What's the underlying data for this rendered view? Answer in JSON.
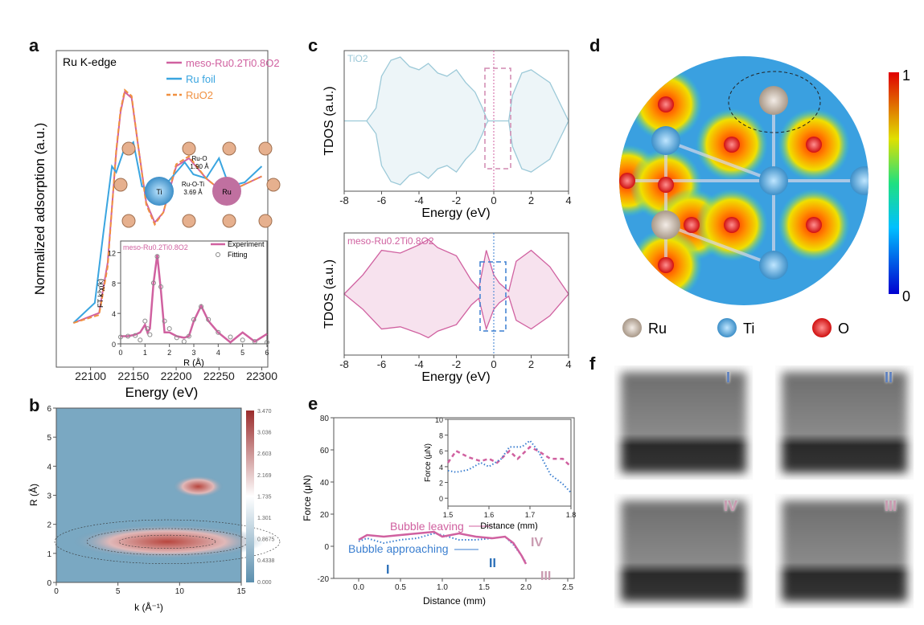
{
  "panels": {
    "a": "a",
    "b": "b",
    "c": "c",
    "d": "d",
    "e": "e",
    "f": "f"
  },
  "chart_data": [
    {
      "panel": "a",
      "type": "line",
      "annotation": "Ru K-edge",
      "xlabel": "Energy (eV)",
      "ylabel": "Normalized adsorption (a.u.)",
      "xlim": [
        22080,
        22300
      ],
      "xticks": [
        22100,
        22150,
        22200,
        22250,
        22300
      ],
      "series": [
        {
          "name": "meso-Ru0.2Ti0.8O2",
          "color": "#d061a0",
          "x": [
            22080,
            22110,
            22120,
            22130,
            22135,
            22140,
            22148,
            22155,
            22165,
            22175,
            22185,
            22200,
            22215,
            22235,
            22255,
            22275,
            22300
          ],
          "y": [
            0.0,
            0.05,
            0.3,
            0.85,
            1.05,
            1.15,
            1.12,
            0.9,
            0.6,
            0.5,
            0.55,
            0.78,
            0.82,
            0.72,
            0.65,
            0.68,
            0.73
          ]
        },
        {
          "name": "Ru foil",
          "color": "#3aa5e0",
          "x": [
            22080,
            22105,
            22115,
            22125,
            22130,
            22138,
            22150,
            22160,
            22172,
            22190,
            22210,
            22220,
            22235,
            22250,
            22262,
            22280,
            22300
          ],
          "y": [
            0.0,
            0.1,
            0.45,
            0.78,
            0.75,
            0.85,
            0.9,
            0.68,
            0.66,
            0.7,
            0.8,
            0.74,
            0.72,
            0.82,
            0.68,
            0.7,
            0.78
          ]
        },
        {
          "name": "RuO2",
          "color": "#f09040",
          "dashed": true,
          "x": [
            22080,
            22110,
            22120,
            22130,
            22135,
            22140,
            22148,
            22155,
            22165,
            22175,
            22185,
            22200,
            22215,
            22235,
            22255,
            22275,
            22300
          ],
          "y": [
            0.0,
            0.04,
            0.28,
            0.86,
            1.06,
            1.16,
            1.13,
            0.9,
            0.59,
            0.49,
            0.55,
            0.79,
            0.83,
            0.72,
            0.65,
            0.68,
            0.73
          ]
        }
      ],
      "structure": {
        "center1": "Ti",
        "center2": "Ru",
        "bond1": "Ru-O",
        "bond1_len": "1.90 Å",
        "bond2": "Ru-O-Ti",
        "bond2_len": "3.69 Å"
      },
      "inset": {
        "type": "line",
        "title": "meso-Ru0.2Ti0.8O2",
        "xlabel": "R (Å)",
        "ylabel": "FT k³χ(k)",
        "xlim": [
          0,
          6
        ],
        "ylim": [
          0,
          13
        ],
        "xticks": [
          0,
          1,
          2,
          3,
          4,
          5,
          6
        ],
        "yticks": [
          0,
          4,
          8,
          12
        ],
        "series": [
          {
            "name": "Experiment",
            "color": "#d061a0",
            "x": [
              0,
              0.3,
              0.6,
              0.8,
              1.0,
              1.1,
              1.2,
              1.35,
              1.5,
              1.65,
              1.8,
              2.0,
              2.3,
              2.6,
              2.8,
              3.0,
              3.3,
              3.6,
              4.0,
              4.5,
              5.0,
              5.5,
              6.0
            ],
            "y": [
              1,
              1,
              1.2,
              1.5,
              2.5,
              1.5,
              2,
              8,
              11.7,
              7,
              1.5,
              1.5,
              1,
              0.8,
              1,
              3,
              5,
              3,
              1.5,
              0.2,
              1.5,
              0.3,
              1.3
            ]
          },
          {
            "name": "Fitting",
            "color": "#888888",
            "x": [
              0,
              0.3,
              0.6,
              0.8,
              1.0,
              1.1,
              1.2,
              1.35,
              1.5,
              1.65,
              1.8,
              2.0,
              2.3,
              2.6,
              2.8,
              3.0,
              3.3,
              3.6,
              4.0,
              4.5,
              5.0,
              5.5,
              6.0
            ],
            "y": [
              0.9,
              1,
              1.1,
              0.5,
              3,
              2,
              1.2,
              8,
              11.5,
              7.5,
              3,
              2,
              0.8,
              0.3,
              1,
              3.2,
              4.9,
              3.2,
              1.5,
              0.9,
              0.5,
              0.3,
              0.2
            ]
          }
        ]
      }
    },
    {
      "panel": "b",
      "type": "heatmap",
      "xlabel": "k (Å⁻¹)",
      "ylabel": "R (Å)",
      "xlim": [
        0,
        15
      ],
      "ylim": [
        0,
        6
      ],
      "xticks": [
        0,
        5,
        10,
        15
      ],
      "yticks": [
        0,
        1,
        2,
        3,
        4,
        5,
        6
      ],
      "colorbar_ticks": [
        "3.470",
        "3.036",
        "2.603",
        "2.169",
        "1.735",
        "1.301",
        "0.8675",
        "0.4338",
        "0.000"
      ],
      "colors": {
        "low": "#5b8fae",
        "mid": "#ffffff",
        "high": "#9b2c2c"
      },
      "peaks": [
        {
          "k": 9,
          "R": 1.4,
          "value": 3.47
        },
        {
          "k": 11.5,
          "R": 3.3,
          "value": 2.3
        }
      ]
    },
    {
      "panel": "c-top",
      "type": "area",
      "annotation": "TiO2",
      "xlabel": "Energy (eV)",
      "ylabel": "TDOS (a.u.)",
      "xlim": [
        -8,
        4
      ],
      "xticks": [
        -8,
        -6,
        -4,
        -2,
        0,
        2,
        4
      ],
      "color": "#9cc9d8",
      "x": [
        -8,
        -6.8,
        -6.3,
        -6,
        -5.5,
        -5,
        -4.5,
        -4,
        -3.5,
        -3,
        -2.5,
        -2,
        -1.5,
        -1,
        -0.6,
        -0.4,
        -0.3,
        0.8,
        1,
        1.5,
        2,
        2.5,
        3,
        3.5,
        4
      ],
      "y": [
        0,
        0,
        0.2,
        0.7,
        0.95,
        1.0,
        0.85,
        0.8,
        0.9,
        0.75,
        0.7,
        0.8,
        0.6,
        0.45,
        0.2,
        0.05,
        0,
        0,
        0.4,
        0.75,
        0.8,
        0.7,
        0.6,
        0.3,
        0
      ]
    },
    {
      "panel": "c-bottom",
      "type": "area",
      "annotation": "meso-Ru0.2Ti0.8O2",
      "xlabel": "Energy (eV)",
      "ylabel": "TDOS (a.u.)",
      "xlim": [
        -8,
        4
      ],
      "xticks": [
        -8,
        -6,
        -4,
        -2,
        0,
        2,
        4
      ],
      "color": "#d061a0",
      "x": [
        -8,
        -7,
        -6,
        -5,
        -4,
        -3.5,
        -3,
        -2,
        -1.2,
        -0.8,
        -0.4,
        0,
        0.3,
        0.8,
        1.2,
        2,
        3,
        4
      ],
      "y": [
        0,
        0.35,
        0.8,
        0.75,
        0.9,
        1.0,
        0.85,
        0.7,
        0.25,
        0.1,
        0.8,
        0.35,
        0.2,
        0.05,
        0.6,
        0.8,
        0.5,
        0
      ]
    },
    {
      "panel": "d",
      "type": "heatmap",
      "colorbar_ticks": [
        "1",
        "0"
      ],
      "legend": [
        "Ru",
        "Ti",
        "O"
      ],
      "legend_colors": [
        "#c8b8aa",
        "#4aa3d8",
        "#e02020"
      ]
    },
    {
      "panel": "e",
      "type": "line",
      "xlabel": "Distance (mm)",
      "ylabel": "Force (μN)",
      "xlim": [
        -0.2,
        2.5
      ],
      "ylim": [
        -20,
        80
      ],
      "xticks": [
        "0.0",
        "0.5",
        "1.0",
        "1.5",
        "2.0",
        "2.5"
      ],
      "yticks": [
        "80",
        "60",
        "40",
        "20",
        "0",
        "-20"
      ],
      "annotations": [
        "Bubble leaving",
        "Bubble approaching",
        "I",
        "II",
        "III",
        "IV"
      ],
      "series": [
        {
          "name": "Bubble leaving",
          "color": "#d061a0",
          "x": [
            0,
            0.1,
            0.3,
            0.5,
            0.7,
            0.9,
            1.0,
            1.2,
            1.4,
            1.6,
            1.75,
            1.85,
            1.95,
            2.0
          ],
          "y": [
            4,
            7,
            6,
            7,
            8,
            9,
            6,
            8,
            6,
            5,
            6,
            2,
            -6,
            -11
          ]
        },
        {
          "name": "Bubble approaching",
          "color": "#3b7fd0",
          "x": [
            0,
            0.1,
            0.3,
            0.5,
            0.7,
            0.9,
            1.0,
            1.2,
            1.4,
            1.6,
            1.75,
            1.85,
            1.95,
            2.0
          ],
          "y": [
            3,
            5,
            2,
            4,
            5,
            8,
            7,
            4,
            4,
            5,
            6,
            1,
            -6,
            -10
          ]
        }
      ],
      "inset": {
        "xlabel": "Distance (mm)",
        "ylabel": "Force (μN)",
        "xlim": [
          1.5,
          1.8
        ],
        "ylim": [
          -1,
          10
        ],
        "xticks": [
          "1.5",
          "1.6",
          "1.7",
          "1.8"
        ],
        "yticks": [
          "0",
          "2",
          "4",
          "6",
          "8",
          "10"
        ],
        "series": [
          {
            "color": "#d061a0",
            "dashed": true,
            "x": [
              1.5,
              1.52,
              1.55,
              1.58,
              1.6,
              1.62,
              1.65,
              1.67,
              1.7,
              1.72,
              1.75,
              1.78,
              1.8
            ],
            "y": [
              4.5,
              6,
              5.2,
              4.7,
              5,
              4.5,
              6,
              5,
              6.5,
              6,
              5,
              5,
              4
            ]
          },
          {
            "color": "#3b7fd0",
            "dotted": true,
            "x": [
              1.5,
              1.52,
              1.55,
              1.58,
              1.6,
              1.63,
              1.65,
              1.68,
              1.7,
              1.72,
              1.75,
              1.78,
              1.8
            ],
            "y": [
              3.5,
              3.3,
              3.6,
              4.5,
              4,
              5,
              6.5,
              6.5,
              7.3,
              6,
              3,
              1.8,
              0.7
            ]
          }
        ]
      }
    }
  ],
  "f": {
    "labels": [
      "I",
      "II",
      "IV",
      "III"
    ]
  }
}
